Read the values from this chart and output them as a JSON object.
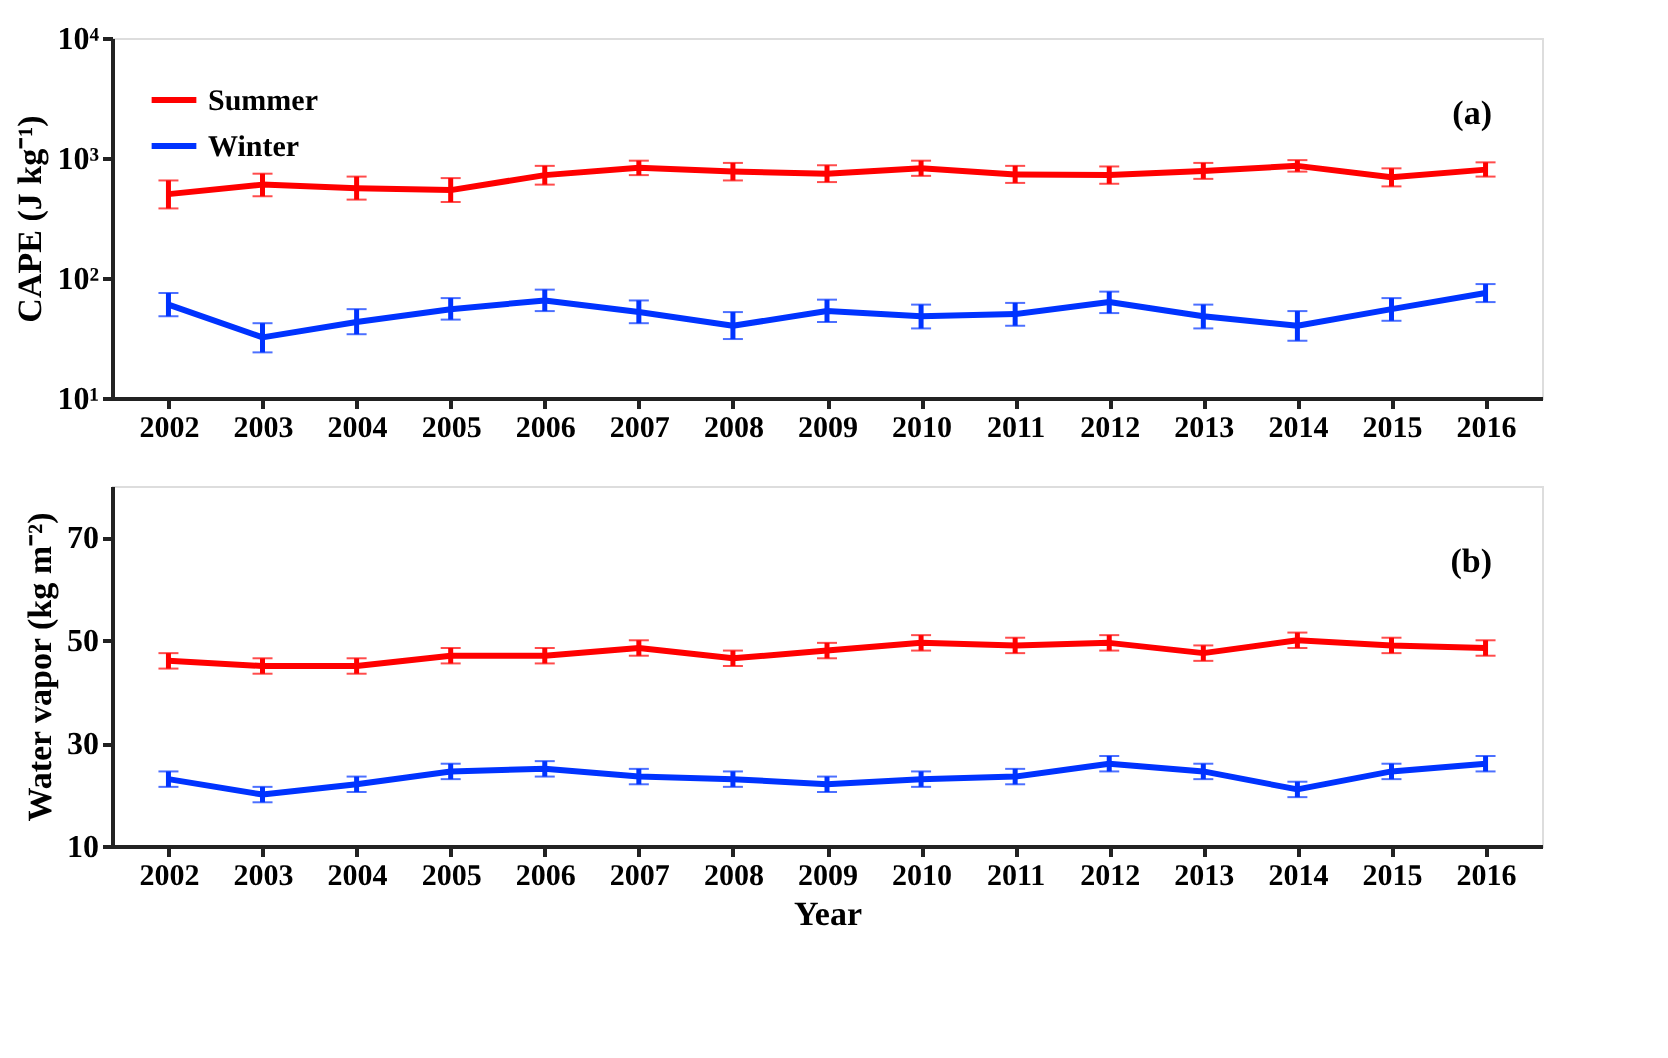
{
  "chart_data": [
    {
      "type": "line",
      "ylabel": "CAPE (J kg⁻¹)",
      "log": "y",
      "ylim": [
        10,
        10000
      ],
      "yticks": [
        {
          "value": 10,
          "label": "10¹"
        },
        {
          "value": 100,
          "label": "10²"
        },
        {
          "value": 1000,
          "label": "10³"
        },
        {
          "value": 10000,
          "label": "10⁴"
        }
      ],
      "grid": false,
      "legend": "top left",
      "annotations": [
        "(a)"
      ],
      "categories": [
        "2002",
        "2003",
        "2004",
        "2005",
        "2006",
        "2007",
        "2008",
        "2009",
        "2010",
        "2011",
        "2012",
        "2013",
        "2014",
        "2015",
        "2016"
      ],
      "series": [
        {
          "name": "Summer",
          "color": "#ff0000",
          "values": [
            500,
            600,
            560,
            540,
            720,
            830,
            770,
            740,
            820,
            730,
            720,
            780,
            860,
            690,
            800
          ],
          "errors": [
            [
              380,
              650
            ],
            [
              480,
              740
            ],
            [
              450,
              700
            ],
            [
              430,
              680
            ],
            [
              600,
              860
            ],
            [
              720,
              950
            ],
            [
              650,
              910
            ],
            [
              630,
              870
            ],
            [
              710,
              950
            ],
            [
              620,
              860
            ],
            [
              610,
              850
            ],
            [
              670,
              910
            ],
            [
              770,
              960
            ],
            [
              580,
              820
            ],
            [
              700,
              920
            ]
          ]
        },
        {
          "name": "Winter",
          "color": "#0033ff",
          "values": [
            60,
            32,
            43,
            55,
            65,
            52,
            40,
            53,
            48,
            50,
            63,
            48,
            40,
            55,
            75
          ],
          "errors": [
            [
              48,
              75
            ],
            [
              24,
              42
            ],
            [
              34,
              55
            ],
            [
              45,
              68
            ],
            [
              53,
              80
            ],
            [
              42,
              65
            ],
            [
              31,
              52
            ],
            [
              43,
              66
            ],
            [
              38,
              60
            ],
            [
              40,
              62
            ],
            [
              51,
              77
            ],
            [
              38,
              60
            ],
            [
              30,
              53
            ],
            [
              44,
              68
            ],
            [
              63,
              89
            ]
          ]
        }
      ]
    },
    {
      "type": "line",
      "xlabel": "Year",
      "ylabel": "Water vapor (kg m⁻²)",
      "ylim": [
        10,
        80
      ],
      "yticks": [
        10,
        30,
        50,
        70
      ],
      "grid": false,
      "legend": "top left",
      "annotations": [
        "(b)"
      ],
      "categories": [
        "2002",
        "2003",
        "2004",
        "2005",
        "2006",
        "2007",
        "2008",
        "2009",
        "2010",
        "2011",
        "2012",
        "2013",
        "2014",
        "2015",
        "2016"
      ],
      "series": [
        {
          "name": "Summer",
          "color": "#ff0000",
          "values": [
            46,
            45,
            45,
            47,
            47,
            48.5,
            46.5,
            48,
            49.5,
            49,
            49.5,
            47.5,
            50,
            49,
            48.5
          ],
          "errors": [
            1.5,
            1.5,
            1.5,
            1.5,
            1.5,
            1.5,
            1.5,
            1.5,
            1.5,
            1.5,
            1.5,
            1.5,
            1.5,
            1.5,
            1.5
          ]
        },
        {
          "name": "Winter",
          "color": "#0033ff",
          "values": [
            23,
            20,
            22,
            24.5,
            25,
            23.5,
            23,
            22,
            23,
            23.5,
            26,
            24.5,
            21,
            24.5,
            26
          ],
          "errors": [
            1.5,
            1.5,
            1.5,
            1.5,
            1.5,
            1.5,
            1.5,
            1.5,
            1.5,
            1.5,
            1.5,
            1.5,
            1.5,
            1.5,
            1.5
          ]
        }
      ]
    }
  ]
}
